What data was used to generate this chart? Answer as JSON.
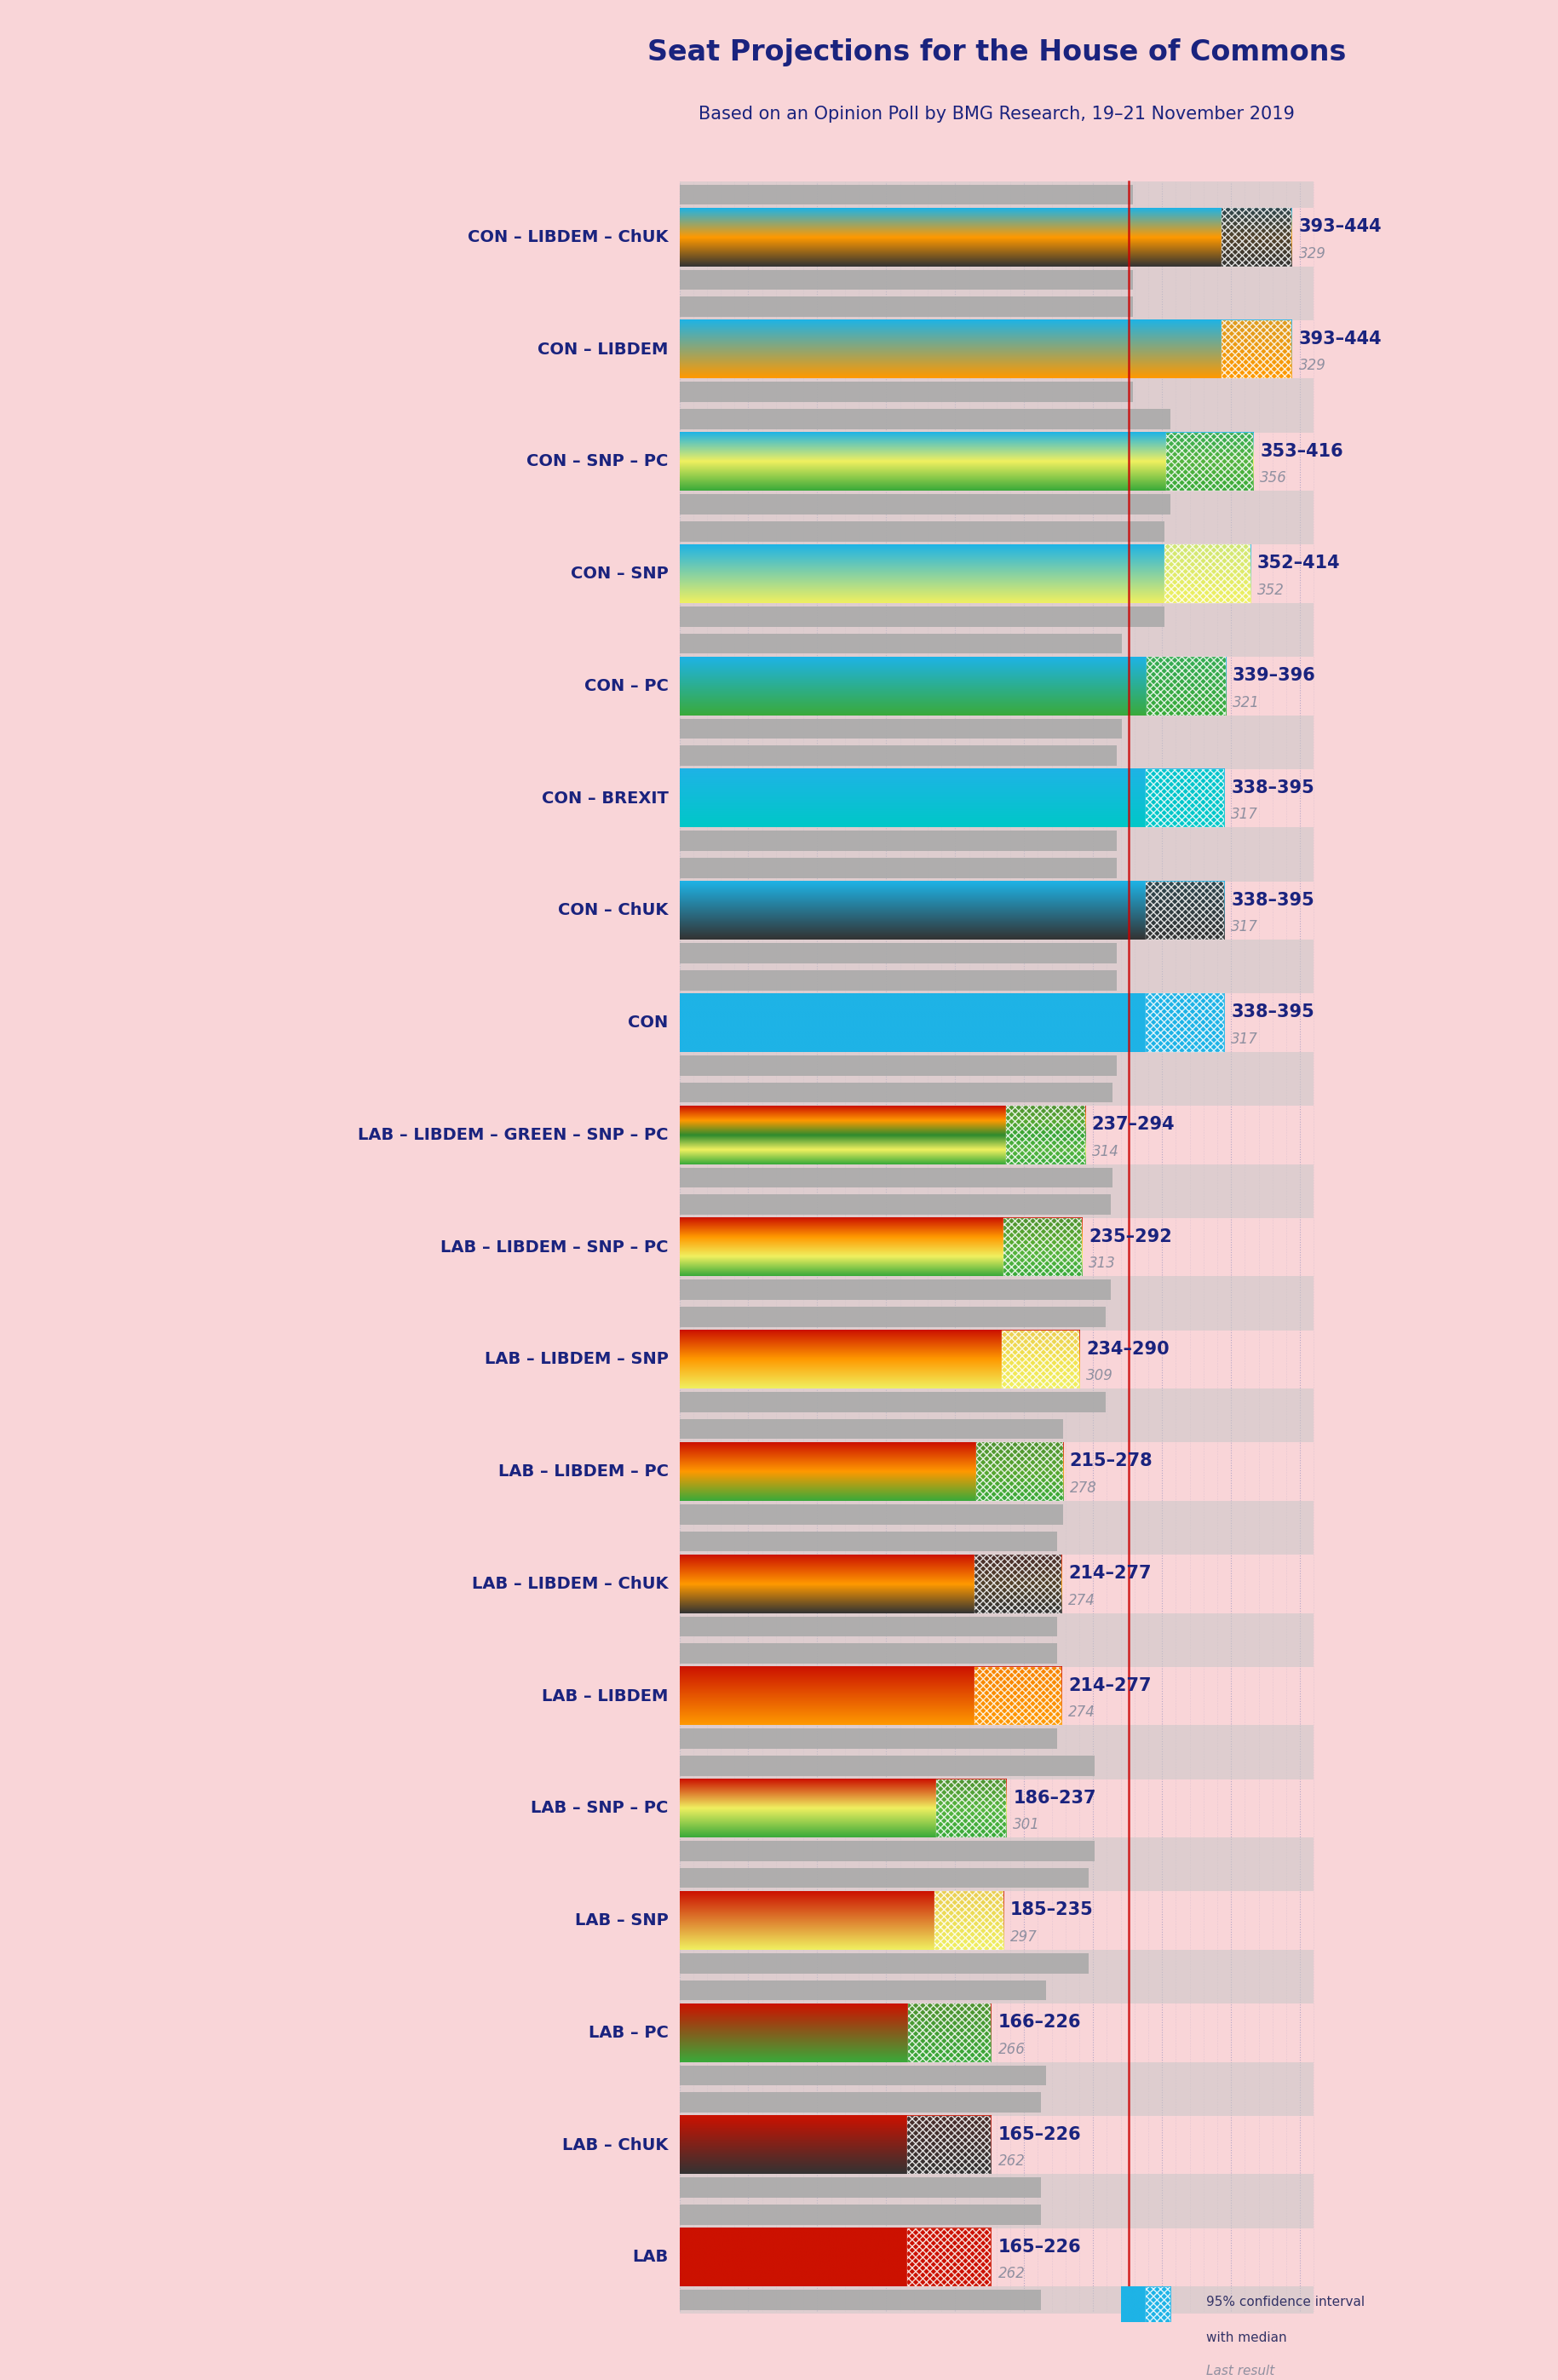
{
  "title": "Seat Projections for the House of Commons",
  "subtitle": "Based on an Opinion Poll by BMG Research, 19–21 November 2019",
  "background_color": "#f9d5d8",
  "title_color": "#1a237e",
  "majority_line": 326,
  "coalitions": [
    {
      "label": "CON – LIBDEM – ChUK",
      "range_label": "393–444",
      "last_result": 329,
      "ci_low": 393,
      "ci_high": 444,
      "gradient_type": "con_libdem_chuk"
    },
    {
      "label": "CON – LIBDEM",
      "range_label": "393–444",
      "last_result": 329,
      "ci_low": 393,
      "ci_high": 444,
      "gradient_type": "con_libdem"
    },
    {
      "label": "CON – SNP – PC",
      "range_label": "353–416",
      "last_result": 356,
      "ci_low": 353,
      "ci_high": 416,
      "gradient_type": "con_snp_pc"
    },
    {
      "label": "CON – SNP",
      "range_label": "352–414",
      "last_result": 352,
      "ci_low": 352,
      "ci_high": 414,
      "gradient_type": "con_snp"
    },
    {
      "label": "CON – PC",
      "range_label": "339–396",
      "last_result": 321,
      "ci_low": 339,
      "ci_high": 396,
      "gradient_type": "con_pc"
    },
    {
      "label": "CON – BREXIT",
      "range_label": "338–395",
      "last_result": 317,
      "ci_low": 338,
      "ci_high": 395,
      "gradient_type": "con_brexit"
    },
    {
      "label": "CON – ChUK",
      "range_label": "338–395",
      "last_result": 317,
      "ci_low": 338,
      "ci_high": 395,
      "gradient_type": "con_chuk"
    },
    {
      "label": "CON",
      "range_label": "338–395",
      "last_result": 317,
      "ci_low": 338,
      "ci_high": 395,
      "gradient_type": "con"
    },
    {
      "label": "LAB – LIBDEM – GREEN – SNP – PC",
      "range_label": "237–294",
      "last_result": 314,
      "ci_low": 237,
      "ci_high": 294,
      "gradient_type": "lab_libdem_green_snp_pc"
    },
    {
      "label": "LAB – LIBDEM – SNP – PC",
      "range_label": "235–292",
      "last_result": 313,
      "ci_low": 235,
      "ci_high": 292,
      "gradient_type": "lab_libdem_snp_pc"
    },
    {
      "label": "LAB – LIBDEM – SNP",
      "range_label": "234–290",
      "last_result": 309,
      "ci_low": 234,
      "ci_high": 290,
      "gradient_type": "lab_libdem_snp"
    },
    {
      "label": "LAB – LIBDEM – PC",
      "range_label": "215–278",
      "last_result": 278,
      "ci_low": 215,
      "ci_high": 278,
      "gradient_type": "lab_libdem_pc"
    },
    {
      "label": "LAB – LIBDEM – ChUK",
      "range_label": "214–277",
      "last_result": 274,
      "ci_low": 214,
      "ci_high": 277,
      "gradient_type": "lab_libdem_chuk"
    },
    {
      "label": "LAB – LIBDEM",
      "range_label": "214–277",
      "last_result": 274,
      "ci_low": 214,
      "ci_high": 277,
      "gradient_type": "lab_libdem"
    },
    {
      "label": "LAB – SNP – PC",
      "range_label": "186–237",
      "last_result": 301,
      "ci_low": 186,
      "ci_high": 237,
      "gradient_type": "lab_snp_pc"
    },
    {
      "label": "LAB – SNP",
      "range_label": "185–235",
      "last_result": 297,
      "ci_low": 185,
      "ci_high": 235,
      "gradient_type": "lab_snp"
    },
    {
      "label": "LAB – PC",
      "range_label": "166–226",
      "last_result": 266,
      "ci_low": 166,
      "ci_high": 226,
      "gradient_type": "lab_pc"
    },
    {
      "label": "LAB – ChUK",
      "range_label": "165–226",
      "last_result": 262,
      "ci_low": 165,
      "ci_high": 226,
      "gradient_type": "lab_chuk"
    },
    {
      "label": "LAB",
      "range_label": "165–226",
      "last_result": 262,
      "ci_low": 165,
      "ci_high": 226,
      "gradient_type": "lab"
    }
  ],
  "party_colors": {
    "CON": "#1eb3e6",
    "LIBDEM": "#ff9900",
    "SNP": "#f0f060",
    "PC": "#3aaa3a",
    "GREEN": "#2e8b2e",
    "CHUK": "#333333",
    "BREXIT": "#00c8c8",
    "LAB": "#cc1100"
  },
  "grid_color": "#c8c8c8",
  "dot_color": "#8888bb",
  "last_result_color": "#aaaaaa",
  "majority_line_color": "#cc0000"
}
